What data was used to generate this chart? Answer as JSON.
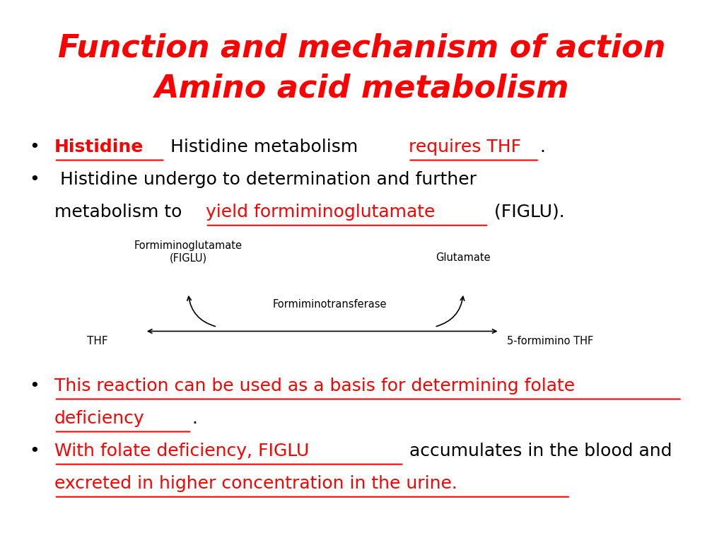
{
  "title_line1": "Function and mechanism of action",
  "title_line2": "Amino acid metabolism",
  "title_color": "#FF0000",
  "title_fontsize": 32,
  "bg_color": "#FFFFFF",
  "red_color": "#FF0000",
  "black_color": "#000000",
  "diagram_label_figlu": "Formiminoglutamate\n(FIGLU)",
  "diagram_label_glutamate": "Glutamate",
  "diagram_label_enzyme": "Formiminotransferase",
  "diagram_label_thf": "THF",
  "diagram_label_5thf": "5-formimino THF"
}
